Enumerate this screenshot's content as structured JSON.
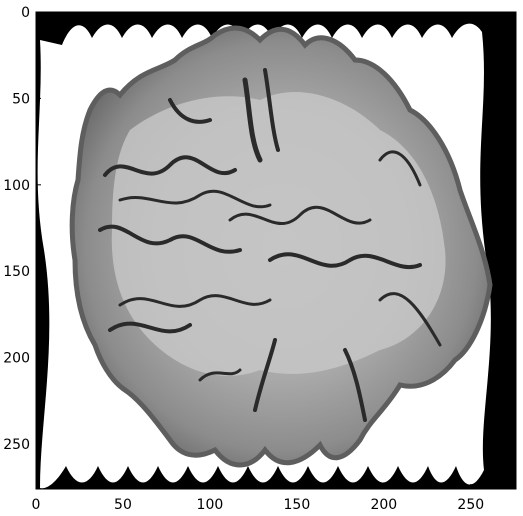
{
  "chart_data": {
    "type": "image",
    "title": "",
    "xlabel": "",
    "ylabel": "",
    "xlim": [
      0,
      276
    ],
    "ylim": [
      276,
      0
    ],
    "grid": false,
    "x_ticks": [
      {
        "value": 0,
        "label": "0"
      },
      {
        "value": 50,
        "label": "50"
      },
      {
        "value": 100,
        "label": "100"
      },
      {
        "value": 150,
        "label": "150"
      },
      {
        "value": 200,
        "label": "200"
      },
      {
        "value": 250,
        "label": "250"
      }
    ],
    "y_ticks": [
      {
        "value": 0,
        "label": "0"
      },
      {
        "value": 50,
        "label": "50"
      },
      {
        "value": 100,
        "label": "100"
      },
      {
        "value": 150,
        "label": "150"
      },
      {
        "value": 200,
        "label": "200"
      },
      {
        "value": 250,
        "label": "250"
      }
    ],
    "colormap": "gray",
    "content": "warped grayscale marbled texture (wave distortion) on black background"
  }
}
